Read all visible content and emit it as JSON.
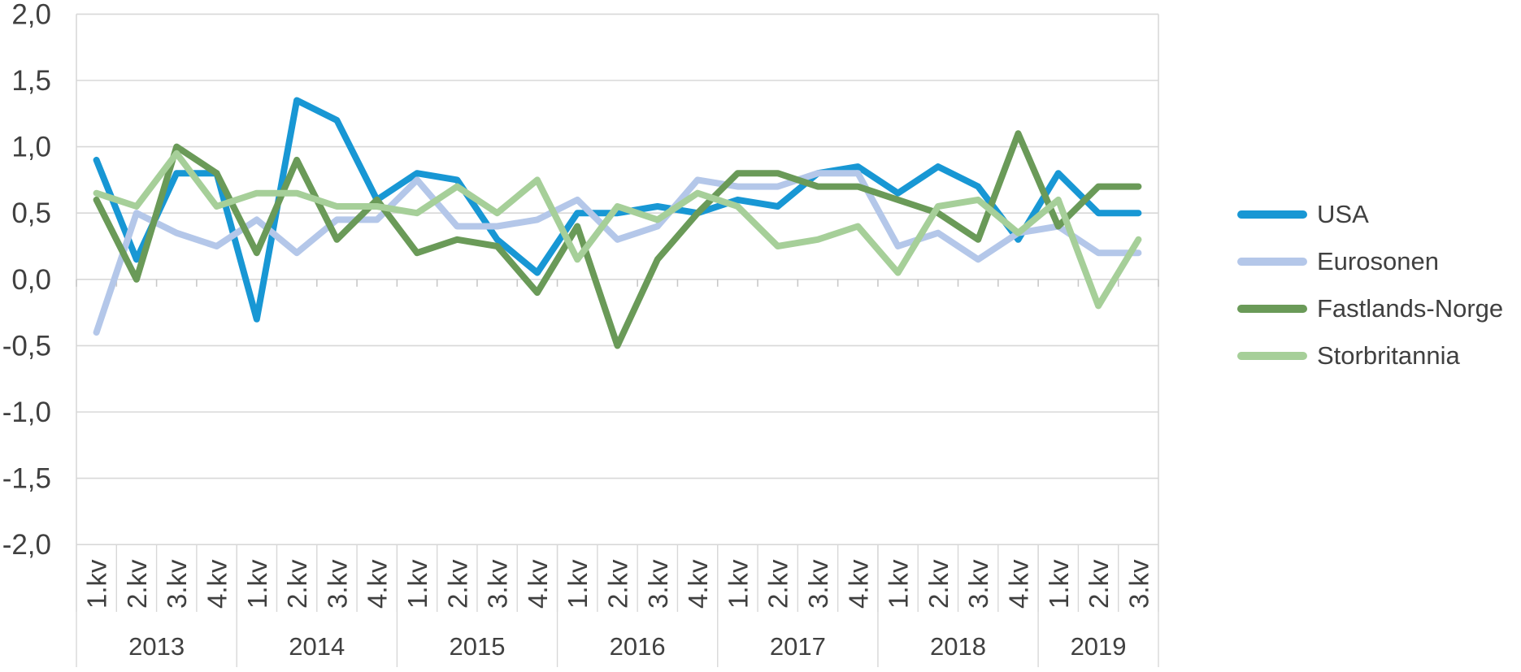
{
  "chart_data": {
    "type": "line",
    "title": "",
    "grid": true,
    "legend_position": "right",
    "y_axis": {
      "min": -2.0,
      "max": 2.0,
      "step": 0.5,
      "tick_labels": [
        "2,0",
        "1,5",
        "1,0",
        "0,5",
        "0,0",
        "-0,5",
        "-1,0",
        "-1,5",
        "-2,0"
      ]
    },
    "x_axis": {
      "quarter_label_suffix": ".kv",
      "year_groups": [
        {
          "label": "2013",
          "quarters": 4
        },
        {
          "label": "2014",
          "quarters": 4
        },
        {
          "label": "2015",
          "quarters": 4
        },
        {
          "label": "2016",
          "quarters": 4
        },
        {
          "label": "2017",
          "quarters": 4
        },
        {
          "label": "2018",
          "quarters": 4
        },
        {
          "label": "2019",
          "quarters": 3
        }
      ]
    },
    "series": [
      {
        "name": "USA",
        "color": "#1897D4",
        "values": [
          0.9,
          0.15,
          0.8,
          0.8,
          -0.3,
          1.35,
          1.2,
          0.6,
          0.8,
          0.75,
          0.3,
          0.05,
          0.5,
          0.5,
          0.55,
          0.5,
          0.6,
          0.55,
          0.8,
          0.85,
          0.65,
          0.85,
          0.7,
          0.3,
          0.8,
          0.5,
          0.5
        ]
      },
      {
        "name": "Eurosonen",
        "color": "#B4C7E9",
        "values": [
          -0.4,
          0.5,
          0.35,
          0.25,
          0.45,
          0.2,
          0.45,
          0.45,
          0.75,
          0.4,
          0.4,
          0.45,
          0.6,
          0.3,
          0.4,
          0.75,
          0.7,
          0.7,
          0.8,
          0.8,
          0.25,
          0.35,
          0.15,
          0.35,
          0.4,
          0.2,
          0.2
        ]
      },
      {
        "name": "Fastlands-Norge",
        "color": "#6A9A58",
        "values": [
          0.6,
          0.0,
          1.0,
          0.8,
          0.2,
          0.9,
          0.3,
          0.6,
          0.2,
          0.3,
          0.25,
          -0.1,
          0.4,
          -0.5,
          0.15,
          0.5,
          0.8,
          0.8,
          0.7,
          0.7,
          0.6,
          0.5,
          0.3,
          1.1,
          0.4,
          0.7,
          0.7
        ]
      },
      {
        "name": "Storbritannia",
        "color": "#A6CF99",
        "values": [
          0.65,
          0.55,
          0.95,
          0.55,
          0.65,
          0.65,
          0.55,
          0.55,
          0.5,
          0.7,
          0.5,
          0.75,
          0.15,
          0.55,
          0.45,
          0.65,
          0.55,
          0.25,
          0.3,
          0.4,
          0.05,
          0.55,
          0.6,
          0.35,
          0.6,
          -0.2,
          0.3
        ]
      }
    ]
  },
  "legend": {
    "items": [
      "USA",
      "Eurosonen",
      "Fastlands-Norge",
      "Storbritannia"
    ]
  },
  "colors": {
    "background": "#FFFFFF",
    "grid": "#D8D8D8",
    "tick": "#C8C8C8",
    "axis_text": "#404040"
  }
}
